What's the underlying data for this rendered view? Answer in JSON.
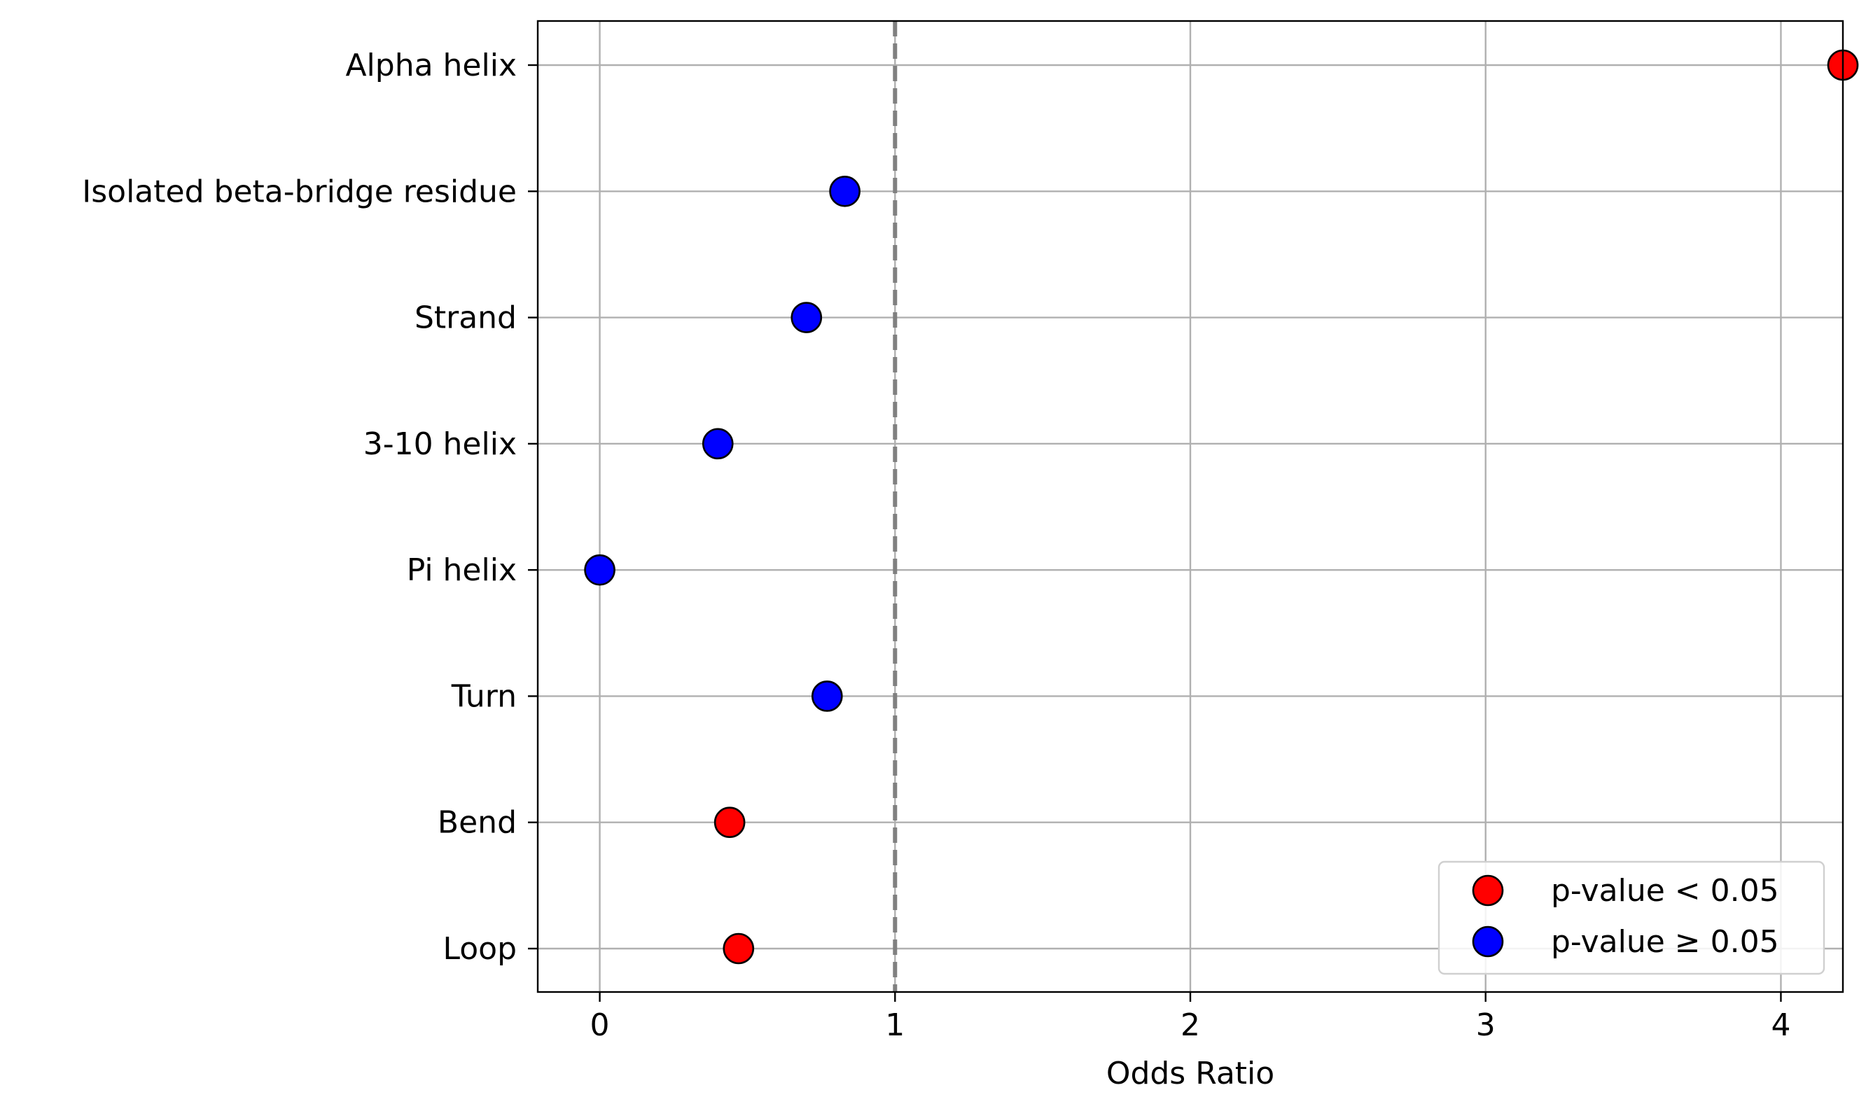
{
  "chart_data": {
    "type": "scatter",
    "xlabel": "Odds Ratio",
    "xlim": [
      -0.21,
      4.21
    ],
    "x_ticks": [
      0,
      1,
      2,
      3,
      4
    ],
    "reference_line": {
      "x": 1,
      "style": "dashed",
      "color": "#808080"
    },
    "grid": true,
    "legend_placement": "lower-right",
    "categories": [
      "Alpha helix",
      "Isolated beta-bridge residue",
      "Strand",
      "3-10 helix",
      "Pi helix",
      "Turn",
      "Bend",
      "Loop"
    ],
    "points": [
      {
        "label": "Alpha helix",
        "odds_ratio": 4.21,
        "significant": true
      },
      {
        "label": "Isolated beta-bridge residue",
        "odds_ratio": 0.83,
        "significant": false
      },
      {
        "label": "Strand",
        "odds_ratio": 0.7,
        "significant": false
      },
      {
        "label": "3-10 helix",
        "odds_ratio": 0.4,
        "significant": false
      },
      {
        "label": "Pi helix",
        "odds_ratio": 0.0,
        "significant": false
      },
      {
        "label": "Turn",
        "odds_ratio": 0.77,
        "significant": false
      },
      {
        "label": "Bend",
        "odds_ratio": 0.44,
        "significant": true
      },
      {
        "label": "Loop",
        "odds_ratio": 0.47,
        "significant": true
      }
    ],
    "legend": [
      {
        "label": "p-value < 0.05",
        "color": "#ff0000"
      },
      {
        "label": "p-value ≥ 0.05",
        "color": "#0000ff"
      }
    ],
    "colors": {
      "significant": "#ff0000",
      "not_significant": "#0000ff"
    }
  }
}
